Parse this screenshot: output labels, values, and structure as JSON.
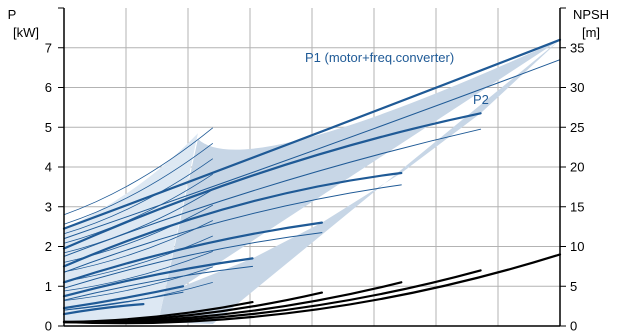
{
  "chart_data": {
    "type": "line",
    "title": "",
    "left_axis": {
      "label_top": "P",
      "label_unit": "[kW]",
      "range": [
        0,
        8
      ],
      "ticks": [
        "0",
        "1",
        "2",
        "3",
        "4",
        "5",
        "6",
        "7"
      ]
    },
    "right_axis": {
      "label_top": "NPSH",
      "label_unit": "[m]",
      "range": [
        0,
        40
      ],
      "ticks": [
        "0",
        "5",
        "10",
        "15",
        "20",
        "25",
        "30",
        "35"
      ]
    },
    "x_range": [
      0,
      1
    ],
    "grid": true,
    "curve_labels": {
      "p1": "P1 (motor+freq.converter)",
      "p2": "P2"
    },
    "colors": {
      "power_curve": "#1f5a96",
      "envelope_fill": "#c7d6e6",
      "extension_fill": "#dde8f3",
      "npsh_curve": "#000000",
      "grid": "#b3b3b3"
    },
    "series": [
      {
        "role": "P1",
        "x": [
          0,
          0.5,
          1.0
        ],
        "y": [
          2.45,
          4.8,
          7.2
        ]
      },
      {
        "role": "P1",
        "x": [
          0,
          0.42,
          0.84
        ],
        "y": [
          1.95,
          3.95,
          5.35
        ]
      },
      {
        "role": "P1",
        "x": [
          0,
          0.34,
          0.68
        ],
        "y": [
          1.5,
          3.0,
          3.85
        ]
      },
      {
        "role": "P1",
        "x": [
          0,
          0.26,
          0.52
        ],
        "y": [
          1.1,
          2.0,
          2.6
        ]
      },
      {
        "role": "P1",
        "x": [
          0,
          0.19,
          0.38
        ],
        "y": [
          0.75,
          1.3,
          1.7
        ]
      },
      {
        "role": "P1",
        "x": [
          0,
          0.12,
          0.24
        ],
        "y": [
          0.45,
          0.7,
          1.0
        ]
      },
      {
        "role": "P1",
        "x": [
          0,
          0.08,
          0.16
        ],
        "y": [
          0.3,
          0.45,
          0.55
        ]
      },
      {
        "role": "P2",
        "x": [
          0,
          0.5,
          1.0
        ],
        "y": [
          2.2,
          4.4,
          6.7
        ]
      },
      {
        "role": "P2",
        "x": [
          0,
          0.42,
          0.84
        ],
        "y": [
          1.75,
          3.55,
          4.95
        ]
      },
      {
        "role": "P2",
        "x": [
          0,
          0.34,
          0.68
        ],
        "y": [
          1.35,
          2.7,
          3.55
        ]
      },
      {
        "role": "P2",
        "x": [
          0,
          0.26,
          0.52
        ],
        "y": [
          0.95,
          1.8,
          2.35
        ]
      },
      {
        "role": "P2",
        "x": [
          0,
          0.19,
          0.38
        ],
        "y": [
          0.65,
          1.15,
          1.5
        ]
      },
      {
        "role": "P2",
        "x": [
          0,
          0.12,
          0.24
        ],
        "y": [
          0.4,
          0.6,
          0.85
        ]
      },
      {
        "role": "NPSH",
        "x": [
          0,
          0.5,
          1.0
        ],
        "y": [
          0.5,
          2.0,
          9.0
        ]
      },
      {
        "role": "NPSH",
        "x": [
          0,
          0.42,
          0.84
        ],
        "y": [
          0.5,
          1.8,
          7.0
        ]
      },
      {
        "role": "NPSH",
        "x": [
          0,
          0.34,
          0.68
        ],
        "y": [
          0.5,
          1.6,
          5.5
        ]
      },
      {
        "role": "NPSH",
        "x": [
          0,
          0.26,
          0.52
        ],
        "y": [
          0.5,
          1.4,
          4.2
        ]
      },
      {
        "role": "NPSH",
        "x": [
          0,
          0.19,
          0.38
        ],
        "y": [
          0.5,
          1.2,
          3.0
        ]
      }
    ]
  }
}
